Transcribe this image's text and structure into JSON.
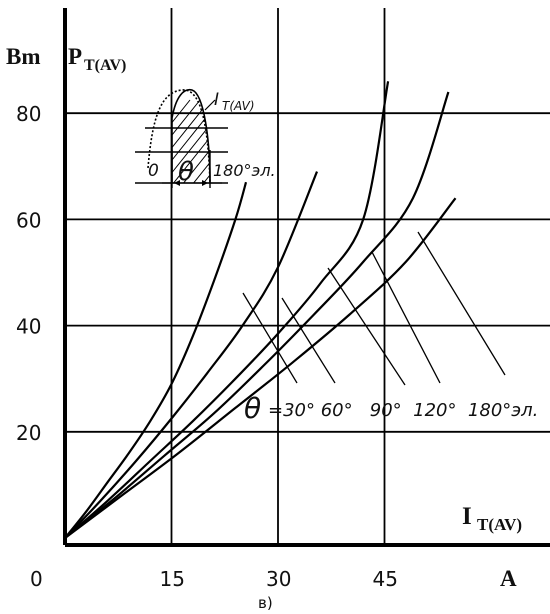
{
  "chart_data": {
    "type": "line",
    "ylabel_unit": "Bm",
    "ylabel_main": "P",
    "ylabel_sub": "T(AV)",
    "xlabel_main": "I",
    "xlabel_sub": "T(AV)",
    "xlabel_unit": "A",
    "caption": "в)",
    "xlim": [
      0,
      56
    ],
    "ylim": [
      0,
      100
    ],
    "x_ticks": [
      "0",
      "15",
      "30",
      "45"
    ],
    "x_tick_values": [
      0,
      15,
      30,
      45
    ],
    "y_ticks": [
      "20",
      "40",
      "60",
      "80"
    ],
    "y_tick_values": [
      20,
      40,
      60,
      80
    ],
    "grid": true,
    "series": [
      {
        "name": "30°",
        "x": [
          0,
          3,
          6,
          9,
          12,
          15,
          18,
          21,
          24,
          25.5
        ],
        "y": [
          0,
          5,
          10.5,
          16,
          22,
          29,
          38,
          48.5,
          60,
          67
        ]
      },
      {
        "name": "60°",
        "x": [
          0,
          5,
          10,
          15,
          20,
          25,
          30,
          35.5
        ],
        "y": [
          0,
          7,
          14.5,
          22.5,
          31,
          40,
          51,
          69
        ]
      },
      {
        "name": "90°",
        "x": [
          0,
          6,
          12,
          18,
          24,
          30,
          36,
          42,
          45.5
        ],
        "y": [
          0,
          7,
          14.5,
          22,
          30,
          38.5,
          48,
          60,
          86
        ]
      },
      {
        "name": "120°",
        "x": [
          0,
          7,
          14,
          21,
          28,
          35,
          42,
          49,
          54
        ],
        "y": [
          0,
          7.5,
          15.5,
          23.5,
          32.5,
          42,
          52,
          64,
          84
        ]
      },
      {
        "name": "180°эл.",
        "x": [
          0,
          8,
          16,
          24,
          32,
          40,
          48,
          55
        ],
        "y": [
          0,
          8,
          16,
          24.5,
          33,
          42,
          52,
          64
        ]
      }
    ],
    "theta_label": "θ",
    "theta_values_text": "=30° 60°   90°  120°  180°эл.",
    "inset": {
      "current_label": "I",
      "current_sub": "T(AV)",
      "zero_label": "0",
      "theta_label": "θ",
      "end_label": "180°эл."
    }
  }
}
